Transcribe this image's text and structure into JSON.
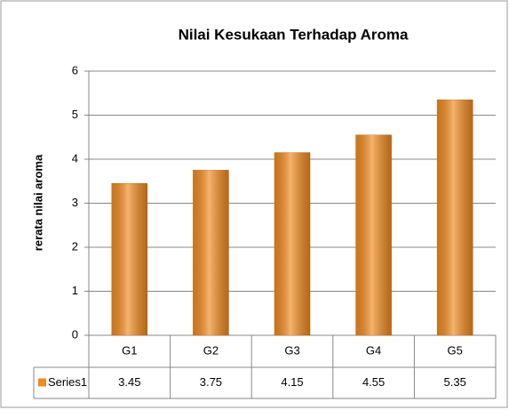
{
  "chart_data": {
    "type": "bar",
    "title": "Nilai Kesukaan Terhadap Aroma",
    "y_label": "rerata nilai aroma",
    "categories": [
      "G1",
      "G2",
      "G3",
      "G4",
      "G5"
    ],
    "series": [
      {
        "name": "Series1",
        "color": "#f28a1e",
        "values": [
          3.45,
          3.75,
          4.15,
          4.55,
          5.35
        ]
      }
    ],
    "ylim": [
      0,
      6
    ],
    "yticks": [
      0,
      1,
      2,
      3,
      4,
      5,
      6
    ],
    "grid": true
  }
}
